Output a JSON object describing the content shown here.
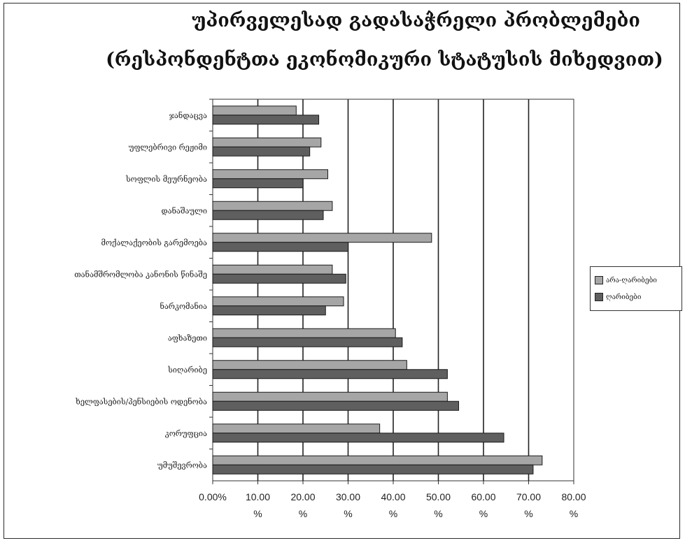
{
  "chart_data": {
    "type": "bar",
    "orientation": "horizontal",
    "title": "უპირველესად გადასაჭრელი პრობლემები",
    "subtitle": "(რესპონდენტთა ეკონომიკური სტატუსის მიხედვით)",
    "categories": [
      "ჯანდაცვა",
      "უფლებრივი რეჟიმი",
      "სოფლის მეურნეობა",
      "დანაშაული",
      "მოქალაქეობის გარემოება",
      "თანამშრომლობა კანონის წინაშე",
      "ნარკომანია",
      "აფხაზეთი",
      "სიღარიბე",
      "ხელფასების/პენსიების ოდენობა",
      "კორუფცია",
      "უმუშევრობა"
    ],
    "series": [
      {
        "name": "არა-ღარიბები",
        "color": "#a6a6a6",
        "values": [
          18.5,
          24.0,
          25.5,
          26.5,
          48.5,
          26.5,
          29.0,
          40.5,
          43.0,
          52.0,
          37.0,
          73.0
        ]
      },
      {
        "name": "ღარიბები",
        "color": "#5f5f5f",
        "values": [
          23.5,
          21.5,
          20.0,
          24.5,
          30.0,
          29.5,
          25.0,
          42.0,
          52.0,
          54.5,
          64.5,
          71.0
        ]
      }
    ],
    "xlim": [
      0,
      80
    ],
    "xticks": [
      {
        "value": 0,
        "line1": "0.00%",
        "line2": ""
      },
      {
        "value": 10,
        "line1": "10.00",
        "line2": "%"
      },
      {
        "value": 20,
        "line1": "20.00",
        "line2": "%"
      },
      {
        "value": 30,
        "line1": "30.00",
        "line2": "%"
      },
      {
        "value": 40,
        "line1": "40.00",
        "line2": "%"
      },
      {
        "value": 50,
        "line1": "50.00",
        "line2": "%"
      },
      {
        "value": 60,
        "line1": "60.00",
        "line2": "%"
      },
      {
        "value": 70,
        "line1": "70.00",
        "line2": "%"
      },
      {
        "value": 80,
        "line1": "80.00",
        "line2": "%"
      }
    ],
    "grid": "vertical",
    "legend_position": "right"
  }
}
